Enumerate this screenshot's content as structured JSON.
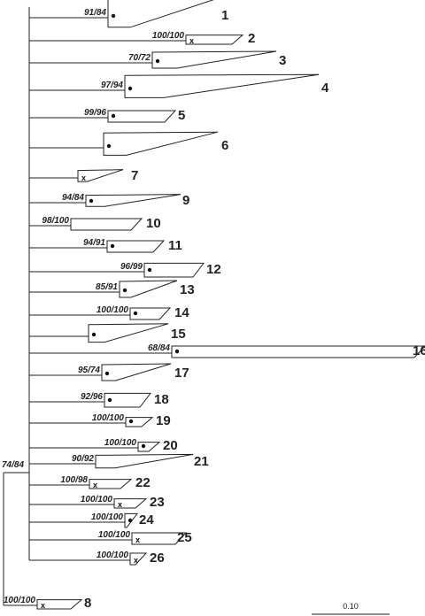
{
  "tree": {
    "root_support": "74/84",
    "scale_bar_label": "0.10",
    "clades": [
      {
        "num": "1",
        "support": "91/84",
        "marker": "dot"
      },
      {
        "num": "2",
        "support": "100/100",
        "marker": "x"
      },
      {
        "num": "3",
        "support": "70/72",
        "marker": "dot"
      },
      {
        "num": "4",
        "support": "97/94",
        "marker": "dot"
      },
      {
        "num": "5",
        "support": "99/96",
        "marker": "dot"
      },
      {
        "num": "6",
        "support": "",
        "marker": "dot"
      },
      {
        "num": "7",
        "support": "",
        "marker": "x"
      },
      {
        "num": "9",
        "support": "94/84",
        "marker": "dot"
      },
      {
        "num": "10",
        "support": "98/100",
        "marker": "none"
      },
      {
        "num": "11",
        "support": "94/91",
        "marker": "dot"
      },
      {
        "num": "12",
        "support": "96/99",
        "marker": "dot"
      },
      {
        "num": "13",
        "support": "85/91",
        "marker": "dot"
      },
      {
        "num": "14",
        "support": "100/100",
        "marker": "dot"
      },
      {
        "num": "15",
        "support": "",
        "marker": "dot"
      },
      {
        "num": "16",
        "support": "68/84",
        "marker": "dot"
      },
      {
        "num": "17",
        "support": "95/74",
        "marker": "dot"
      },
      {
        "num": "18",
        "support": "92/96",
        "marker": "dot"
      },
      {
        "num": "19",
        "support": "100/100",
        "marker": "dot"
      },
      {
        "num": "20",
        "support": "100/100",
        "marker": "dot"
      },
      {
        "num": "21",
        "support": "90/92",
        "marker": "none"
      },
      {
        "num": "22",
        "support": "100/98",
        "marker": "x"
      },
      {
        "num": "23",
        "support": "100/100",
        "marker": "x"
      },
      {
        "num": "24",
        "support": "100/100",
        "marker": "dot"
      },
      {
        "num": "25",
        "support": "100/100",
        "marker": "x"
      },
      {
        "num": "26",
        "support": "100/100",
        "marker": "x"
      }
    ],
    "outgroup": {
      "num": "8",
      "support": "100/100",
      "marker": "x"
    }
  }
}
